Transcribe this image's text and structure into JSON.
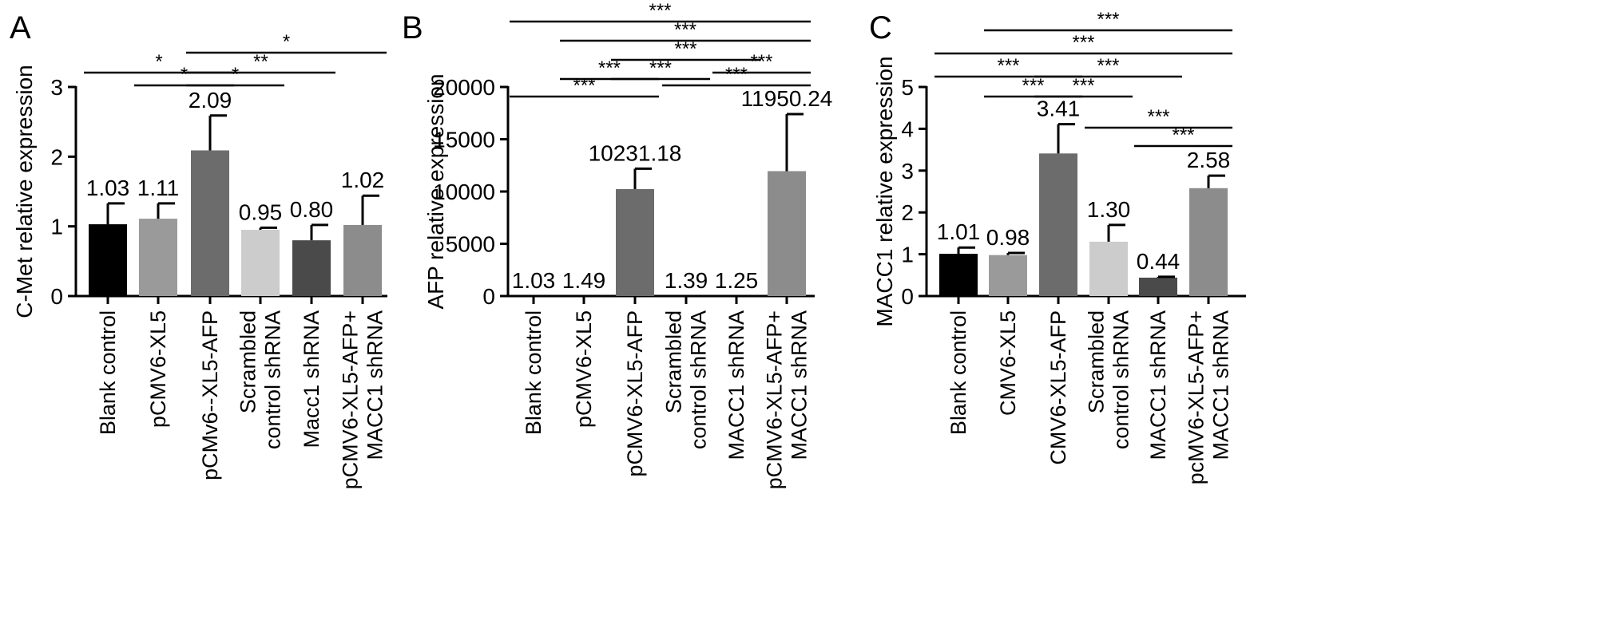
{
  "chart_data": [
    {
      "type": "bar",
      "panel": "A",
      "ylabel": "C-Met relative expression",
      "ylim": [
        0,
        3
      ],
      "yticks": [
        0,
        1,
        2,
        3
      ],
      "categories": [
        [
          "Blank control"
        ],
        [
          "pCMV6-XL5"
        ],
        [
          "pCMv6--XL5-AFP"
        ],
        [
          "Scrambled",
          "control shRNA"
        ],
        [
          "Macc1 shRNA"
        ],
        [
          "pCMV6-XL5-AFP+",
          "MACC1 shRNA"
        ]
      ],
      "values": [
        1.03,
        1.11,
        2.09,
        0.95,
        0.8,
        1.02
      ],
      "value_labels": [
        "1.03",
        "1.11",
        "2.09",
        "0.95",
        "0.80",
        "1.02"
      ],
      "errors": [
        0.3,
        0.22,
        0.5,
        0.03,
        0.22,
        0.42
      ],
      "colors": [
        "#000000",
        "#9a9a9a",
        "#6c6c6c",
        "#cccccc",
        "#4a4a4a",
        "#8c8c8c"
      ],
      "significance": [
        {
          "from": 0,
          "to": 2,
          "label": "*"
        },
        {
          "from": 1,
          "to": 2,
          "label": "*"
        },
        {
          "from": 2,
          "to": 3,
          "label": "*"
        },
        {
          "from": 2,
          "to": 4,
          "label": "**"
        },
        {
          "from": 2,
          "to": 5,
          "label": "*"
        }
      ]
    },
    {
      "type": "bar",
      "panel": "B",
      "ylabel": "AFP relative expression",
      "ylim": [
        0,
        20000
      ],
      "yticks": [
        0,
        5000,
        10000,
        15000,
        20000
      ],
      "categories": [
        [
          "Blank control"
        ],
        [
          "pCMV6-XL5"
        ],
        [
          "pCMV6-XL5-AFP"
        ],
        [
          "Scrambled",
          "control shRNA"
        ],
        [
          "MACC1 shRNA"
        ],
        [
          "pCMV6-XL5-AFP+",
          "MACC1 shRNA"
        ]
      ],
      "values": [
        1.03,
        1.49,
        10231.18,
        1.39,
        1.25,
        11950.24
      ],
      "value_labels": [
        "1.03",
        "1.49",
        "10231.18",
        "1.39",
        "1.25",
        "11950.24"
      ],
      "errors": [
        0,
        0,
        1950,
        0,
        0,
        5450
      ],
      "colors": [
        "#000000",
        "#9a9a9a",
        "#6c6c6c",
        "#cccccc",
        "#4a4a4a",
        "#8c8c8c"
      ],
      "significance": [
        {
          "from": 0,
          "to": 2,
          "label": "***"
        },
        {
          "from": 1,
          "to": 2,
          "label": "***"
        },
        {
          "from": 2,
          "to": 3,
          "label": "***"
        },
        {
          "from": 2,
          "to": 4,
          "label": "***"
        },
        {
          "from": 3,
          "to": 5,
          "label": "***"
        },
        {
          "from": 4,
          "to": 5,
          "label": "***"
        },
        {
          "from": 1,
          "to": 5,
          "label": "***"
        },
        {
          "from": 0,
          "to": 5,
          "label": "***"
        }
      ]
    },
    {
      "type": "bar",
      "panel": "C",
      "ylabel": "MACC1 relative expression",
      "ylim": [
        0,
        5
      ],
      "yticks": [
        0,
        1,
        2,
        3,
        4,
        5
      ],
      "categories": [
        [
          "Blank control"
        ],
        [
          "CMV6-XL5"
        ],
        [
          "CMV6-XL5-AFP"
        ],
        [
          "Scrambled",
          "control shRNA"
        ],
        [
          "MACC1 shRNA"
        ],
        [
          "pcMV6-XL5-AFP+",
          "MACC1 shRNA"
        ]
      ],
      "values": [
        1.01,
        0.98,
        3.41,
        1.3,
        0.44,
        2.58
      ],
      "value_labels": [
        "1.01",
        "0.98",
        "3.41",
        "1.30",
        "0.44",
        "2.58"
      ],
      "errors": [
        0.15,
        0.05,
        0.7,
        0.4,
        0.02,
        0.3
      ],
      "colors": [
        "#000000",
        "#9a9a9a",
        "#6c6c6c",
        "#cccccc",
        "#4a4a4a",
        "#8c8c8c"
      ],
      "significance": [
        {
          "from": 1,
          "to": 2,
          "label": "***"
        },
        {
          "from": 2,
          "to": 3,
          "label": "***"
        },
        {
          "from": 4,
          "to": 5,
          "label": "***"
        },
        {
          "from": 3,
          "to": 5,
          "label": "***"
        },
        {
          "from": 0,
          "to": 2,
          "label": "***"
        },
        {
          "from": 2,
          "to": 4,
          "label": "***"
        },
        {
          "from": 0,
          "to": 5,
          "label": "***"
        },
        {
          "from": 1,
          "to": 5,
          "label": "***"
        }
      ]
    }
  ]
}
